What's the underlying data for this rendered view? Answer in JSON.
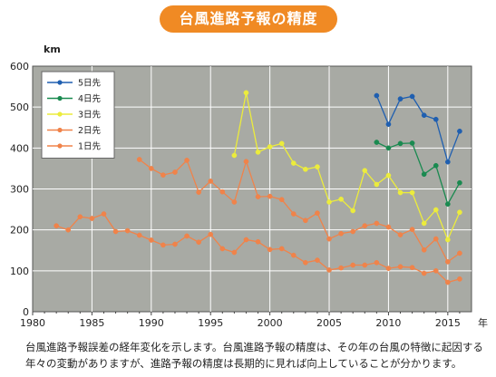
{
  "chart_data": {
    "type": "line",
    "title": "台風進路予報の精度",
    "ylabel": "km",
    "xlabel": "年",
    "xlim": [
      1980,
      2017
    ],
    "ylim": [
      0,
      600
    ],
    "xticks": [
      1980,
      1985,
      1990,
      1995,
      2000,
      2005,
      2010,
      2015
    ],
    "yticks": [
      0,
      100,
      200,
      300,
      400,
      500,
      600
    ],
    "grid": true,
    "legend_position": "top-left",
    "series": [
      {
        "name": "5日先",
        "color": "#1f5fb0",
        "x": [
          2009,
          2010,
          2011,
          2012,
          2013,
          2014,
          2015,
          2016
        ],
        "values": [
          528,
          458,
          520,
          526,
          480,
          470,
          366,
          441
        ]
      },
      {
        "name": "4日先",
        "color": "#1a8a50",
        "x": [
          2009,
          2010,
          2011,
          2012,
          2013,
          2014,
          2015,
          2016
        ],
        "values": [
          414,
          400,
          411,
          412,
          336,
          357,
          263,
          315
        ]
      },
      {
        "name": "3日先",
        "color": "#ecec3c",
        "x": [
          1997,
          1998,
          1999,
          2000,
          2001,
          2002,
          2003,
          2004,
          2005,
          2006,
          2007,
          2008,
          2009,
          2010,
          2011,
          2012,
          2013,
          2014,
          2015,
          2016
        ],
        "values": [
          382,
          535,
          390,
          403,
          411,
          363,
          348,
          354,
          268,
          275,
          247,
          345,
          311,
          333,
          291,
          291,
          216,
          249,
          176,
          243
        ]
      },
      {
        "name": "2日先",
        "color": "#f0834a",
        "x": [
          1989,
          1990,
          1991,
          1992,
          1993,
          1994,
          1995,
          1996,
          1997,
          1998,
          1999,
          2000,
          2001,
          2002,
          2003,
          2004,
          2005,
          2006,
          2007,
          2008,
          2009,
          2010,
          2011,
          2012,
          2013,
          2014,
          2015,
          2016
        ],
        "values": [
          372,
          350,
          334,
          341,
          370,
          292,
          319,
          293,
          268,
          367,
          281,
          282,
          274,
          239,
          223,
          241,
          178,
          191,
          196,
          210,
          216,
          207,
          188,
          201,
          151,
          178,
          122,
          143
        ]
      },
      {
        "name": "1日先",
        "color": "#f0834a",
        "x": [
          1982,
          1983,
          1984,
          1985,
          1986,
          1987,
          1988,
          1989,
          1990,
          1991,
          1992,
          1993,
          1994,
          1995,
          1996,
          1997,
          1998,
          1999,
          2000,
          2001,
          2002,
          2003,
          2004,
          2005,
          2006,
          2007,
          2008,
          2009,
          2010,
          2011,
          2012,
          2013,
          2014,
          2015,
          2016
        ],
        "values": [
          210,
          200,
          232,
          228,
          239,
          196,
          198,
          187,
          175,
          163,
          165,
          185,
          170,
          189,
          154,
          145,
          176,
          171,
          152,
          154,
          138,
          120,
          126,
          102,
          107,
          114,
          114,
          120,
          106,
          110,
          108,
          94,
          100,
          72,
          80
        ]
      }
    ]
  },
  "caption": "台風進路予報誤差の経年変化を示します。台風進路予報の精度は、その年の台風の特徴に起因する年々の変動がありますが、進路予報の精度は長期的に見れば向上していることが分かります。"
}
